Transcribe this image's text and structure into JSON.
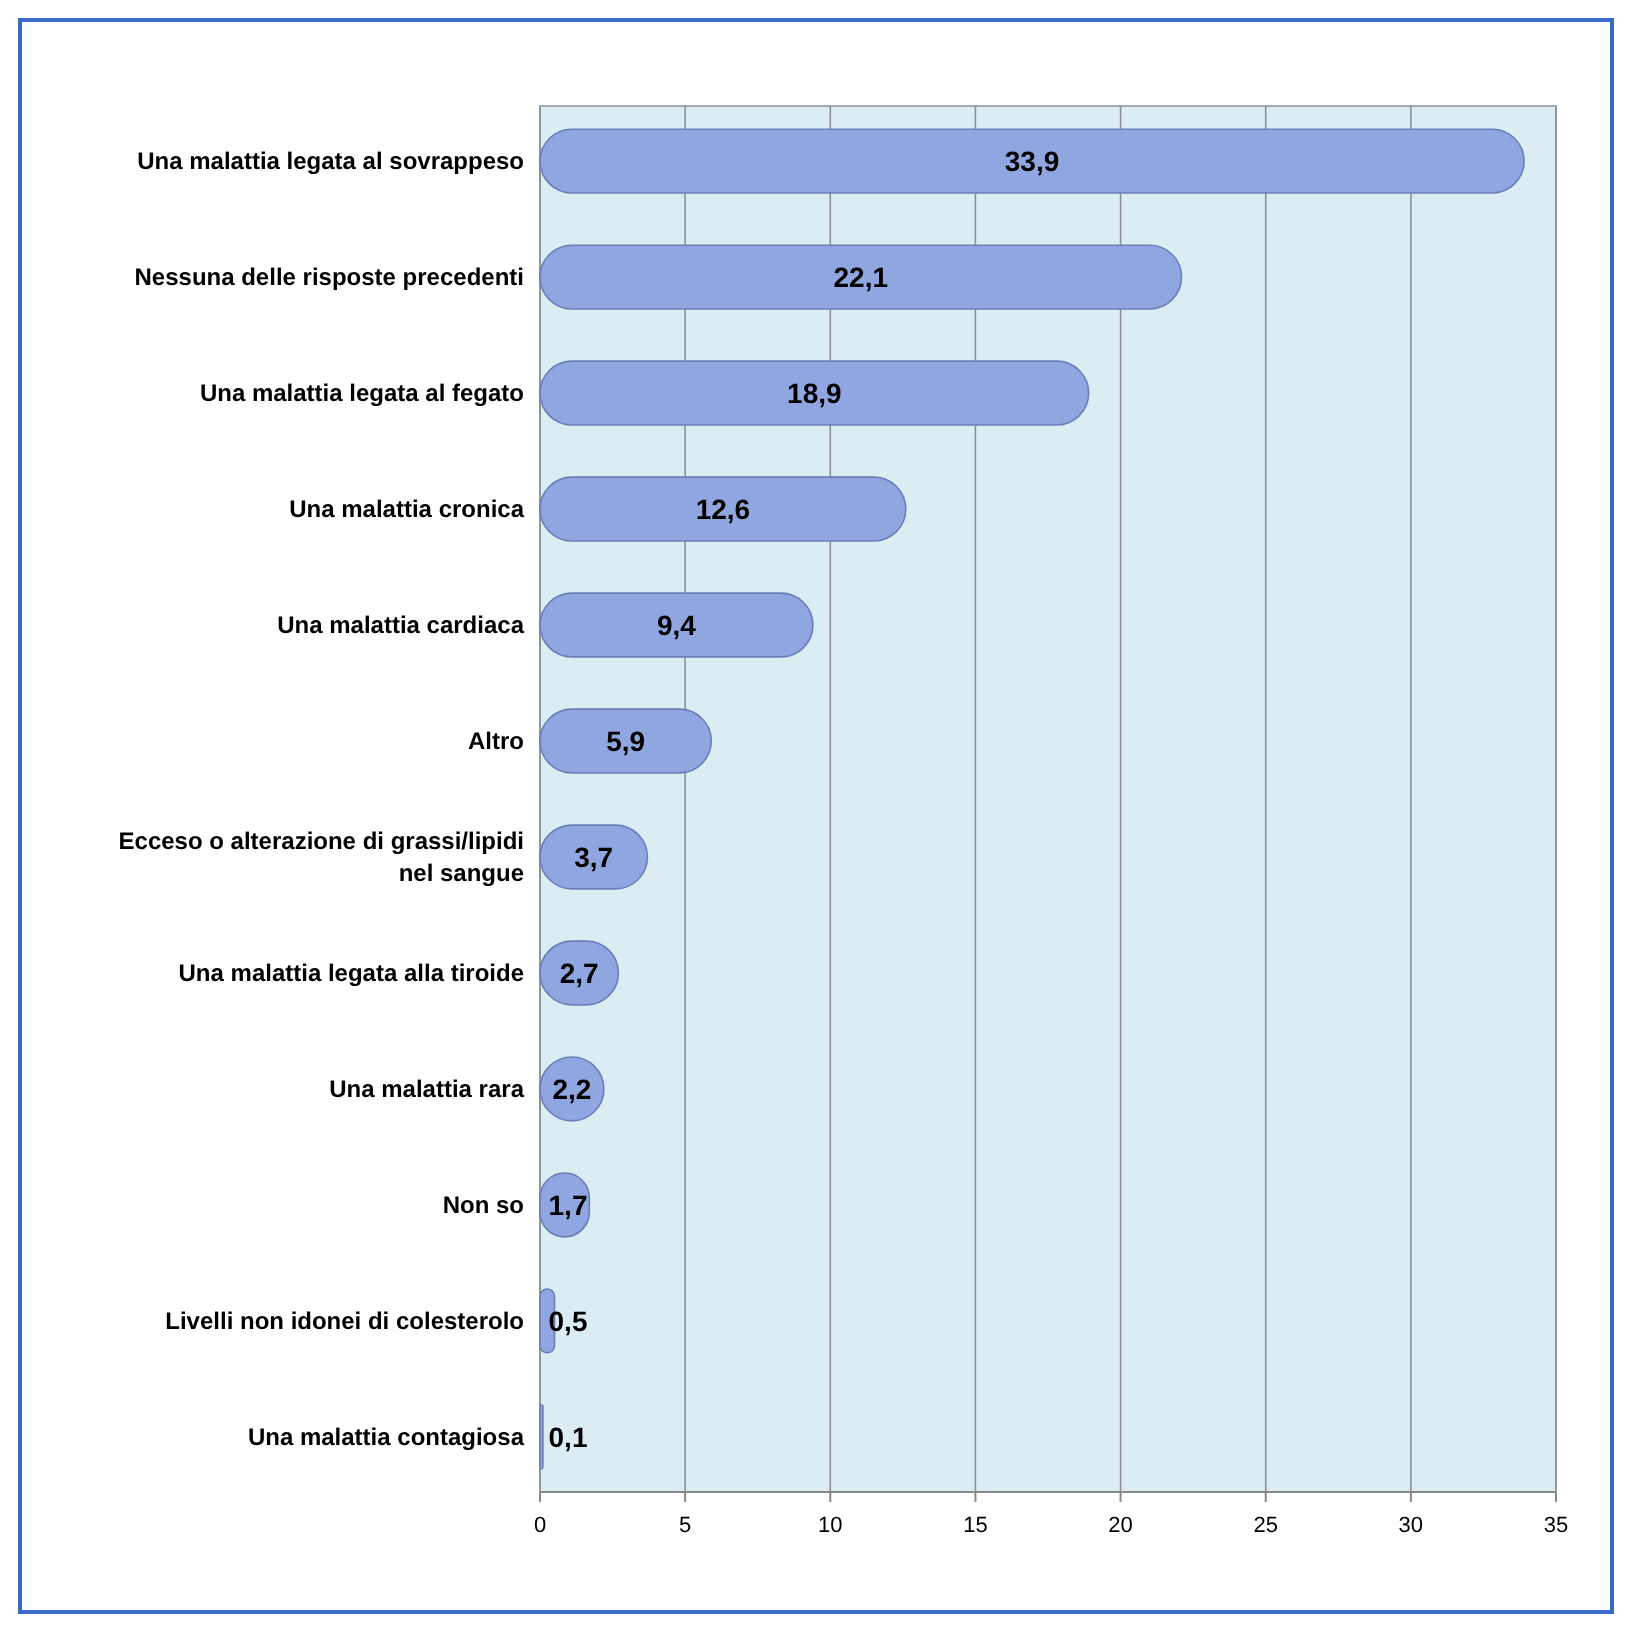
{
  "chart_data": {
    "type": "bar",
    "orientation": "horizontal",
    "categories": [
      "Una malattia legata al sovrappeso",
      "Nessuna delle risposte precedenti",
      "Una malattia legata al fegato",
      "Una malattia cronica",
      "Una malattia cardiaca",
      "Altro",
      "Ecceso o alterazione di grassi/lipidi nel sangue",
      "Una malattia legata alla tiroide",
      "Una malattia rara",
      "Non so",
      "Livelli non idonei di colesterolo",
      "Una malattia contagiosa"
    ],
    "values": [
      33.9,
      22.1,
      18.9,
      12.6,
      9.4,
      5.9,
      3.7,
      2.7,
      2.2,
      1.7,
      0.5,
      0.1
    ],
    "value_labels": [
      "33,9",
      "22,1",
      "18,9",
      "12,6",
      "9,4",
      "5,9",
      "3,7",
      "2,7",
      "2,2",
      "1,7",
      "0,5",
      "0,1"
    ],
    "color": "#8fa6e0",
    "xlim": [
      0,
      35
    ],
    "xticks": [
      0,
      5,
      10,
      15,
      20,
      25,
      30,
      35
    ],
    "grid": "x"
  }
}
